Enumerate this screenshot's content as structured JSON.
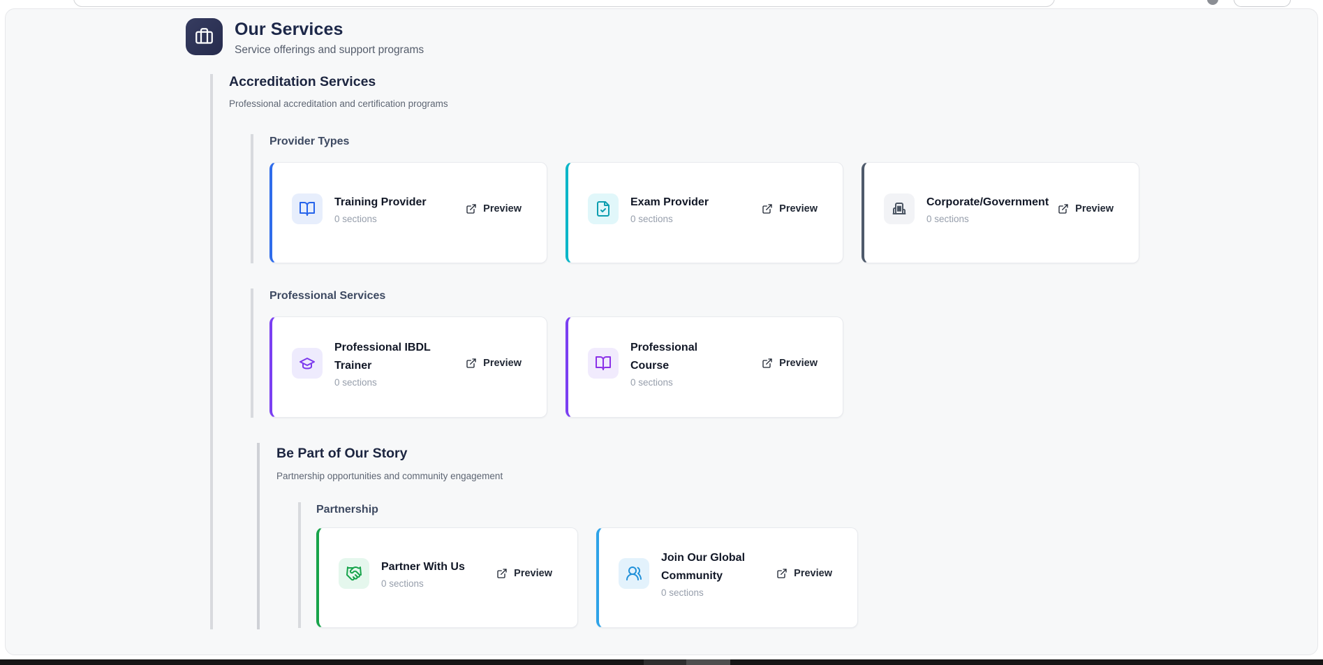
{
  "header": {
    "title": "Our Services",
    "subtitle": "Service offerings and support programs",
    "icon": "briefcase-icon"
  },
  "section": {
    "title": "Accreditation Services",
    "subtitle": "Professional accreditation and certification programs",
    "groups": [
      {
        "title": "Provider Types",
        "cards": [
          {
            "title": "Training Provider",
            "sections_label": "0 sections",
            "preview_label": "Preview",
            "icon": "book-open-icon",
            "accent": "#2f6ceb",
            "icon_bg": "#e7eefc",
            "icon_color": "#2563eb"
          },
          {
            "title": "Exam Provider",
            "sections_label": "0 sections",
            "preview_label": "Preview",
            "icon": "file-check-icon",
            "accent": "#0ab6c8",
            "icon_bg": "#e1f7fa",
            "icon_color": "#0d9eb0"
          },
          {
            "title": "Corporate/Government",
            "sections_label": "0 sections",
            "preview_label": "Preview",
            "icon": "building-icon",
            "accent": "#4e5a6b",
            "icon_bg": "#f2f3f6",
            "icon_color": "#4b5563"
          }
        ]
      },
      {
        "title": "Professional Services",
        "cards": [
          {
            "title": "Professional IBDL\nTrainer",
            "sections_label": "0 sections",
            "preview_label": "Preview",
            "icon": "graduation-cap-icon",
            "accent": "#7b3ff2",
            "icon_bg": "#eeebfd",
            "icon_color": "#7c3aed"
          },
          {
            "title": "Professional\nCourse",
            "sections_label": "0 sections",
            "preview_label": "Preview",
            "icon": "book-open-icon",
            "accent": "#7b3ff2",
            "icon_bg": "#f1ebfd",
            "icon_color": "#8b31e8"
          }
        ]
      }
    ],
    "subsection": {
      "title": "Be Part of Our Story",
      "subtitle": "Partnership opportunities and community engagement",
      "groups": [
        {
          "title": "Partnership",
          "cards": [
            {
              "title": "Partner With Us",
              "sections_label": "0 sections",
              "preview_label": "Preview",
              "icon": "handshake-icon",
              "accent": "#17a34a",
              "icon_bg": "#e5f7ed",
              "icon_color": "#16a34a"
            },
            {
              "title": "Join Our Global\nCommunity",
              "sections_label": "0 sections",
              "preview_label": "Preview",
              "icon": "users-icon",
              "accent": "#2ea3e8",
              "icon_bg": "#e3f2fc",
              "icon_color": "#2090d9"
            }
          ]
        }
      ]
    }
  }
}
